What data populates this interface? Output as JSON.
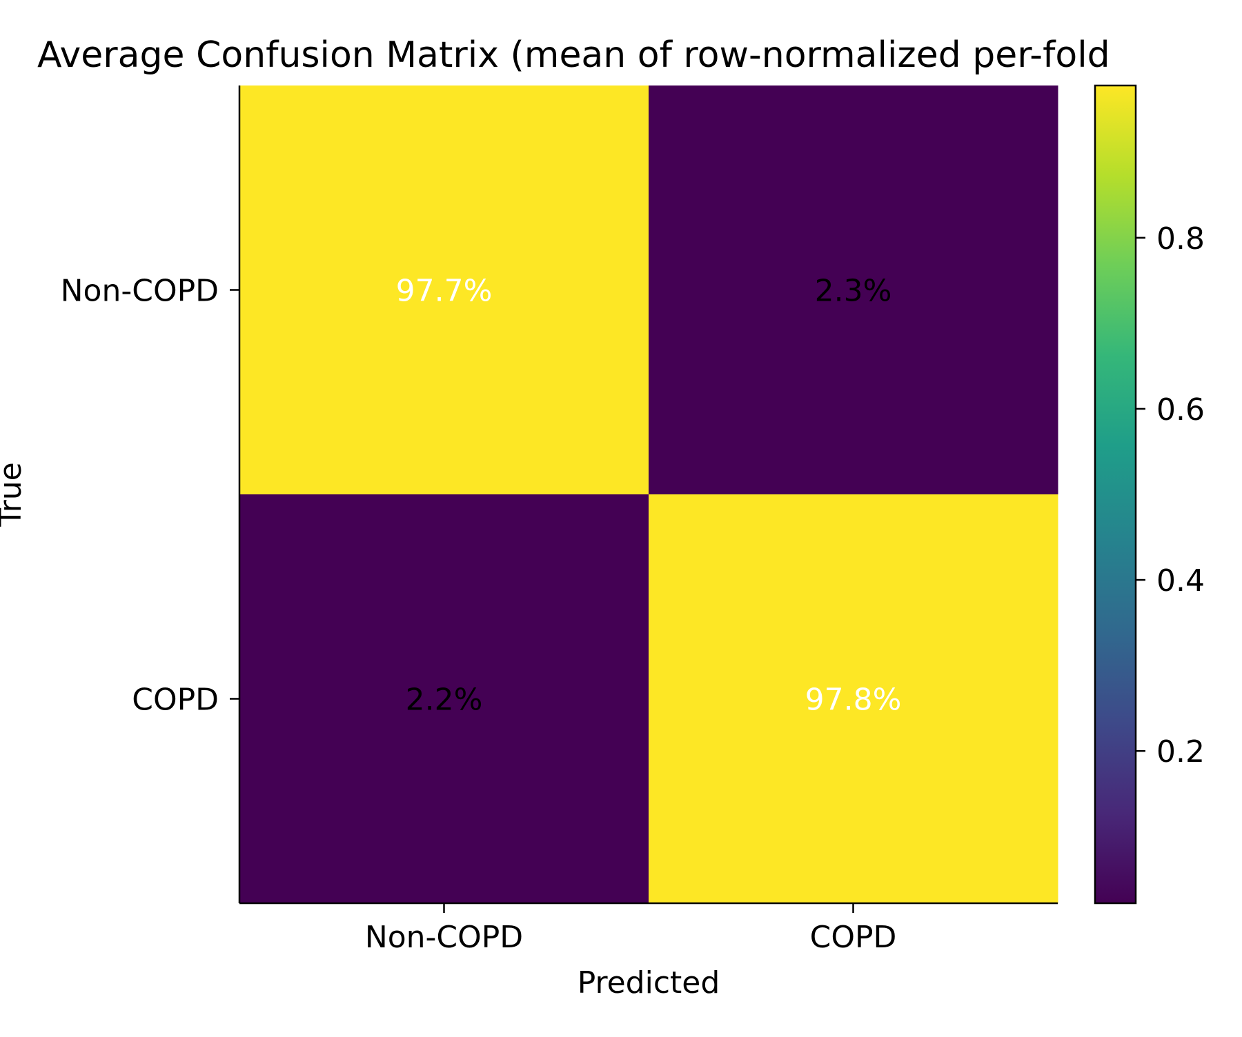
{
  "chart_data": {
    "type": "heatmap",
    "title": "Average Confusion Matrix (mean of row-normalized per-fold",
    "xlabel": "Predicted",
    "ylabel": "True",
    "x_categories": [
      "Non-COPD",
      "COPD"
    ],
    "y_categories": [
      "Non-COPD",
      "COPD"
    ],
    "values": [
      [
        0.977,
        0.023
      ],
      [
        0.022,
        0.978
      ]
    ],
    "cell_labels": [
      [
        "97.7%",
        "2.3%"
      ],
      [
        "2.2%",
        "97.8%"
      ]
    ],
    "colormap": "viridis",
    "colorbar": {
      "range": [
        0.022,
        0.978
      ],
      "ticks": [
        0.2,
        0.4,
        0.6,
        0.8
      ],
      "tick_labels": [
        "0.2",
        "0.4",
        "0.6",
        "0.8"
      ]
    },
    "grid": false
  },
  "colors": {
    "high_cell": "#fde725",
    "low_cell": "#440154",
    "label_on_high": "#ffffff",
    "label_on_low": "#000000",
    "axis": "#000000"
  }
}
